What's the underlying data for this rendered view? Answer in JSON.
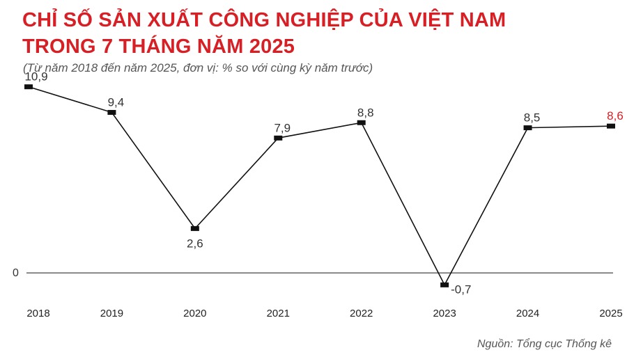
{
  "title_lines": [
    "CHỈ SỐ SẢN XUẤT CÔNG NGHIỆP CỦA VIỆT NAM",
    "TRONG 7 THÁNG NĂM 2025"
  ],
  "subtitle": "(Từ năm 2018 đến năm 2025, đơn vị: % so với cùng kỳ năm trước)",
  "source": "Nguồn: Tổng cục Thống kê",
  "colors": {
    "title": "#d71f26",
    "highlight": "#d71f26",
    "line": "#111111",
    "label": "#333333"
  },
  "chart_data": {
    "type": "line",
    "title": "CHỈ SỐ SẢN XUẤT CÔNG NGHIỆP CỦA VIỆT NAM TRONG 7 THÁNG NĂM 2025",
    "categories": [
      "2018",
      "2019",
      "2020",
      "2021",
      "2022",
      "2023",
      "2024",
      "2025"
    ],
    "values": [
      10.9,
      9.4,
      2.6,
      7.9,
      8.8,
      -0.7,
      8.5,
      8.6
    ],
    "value_labels": [
      "10,9",
      "9,4",
      "2,6",
      "7,9",
      "8,8",
      "-0,7",
      "8,5",
      "8,6"
    ],
    "y_ticks": [
      {
        "value": 0,
        "label": "0"
      }
    ],
    "ylim": [
      -1.5,
      11.5
    ],
    "highlight_index": 7,
    "grid": false
  }
}
